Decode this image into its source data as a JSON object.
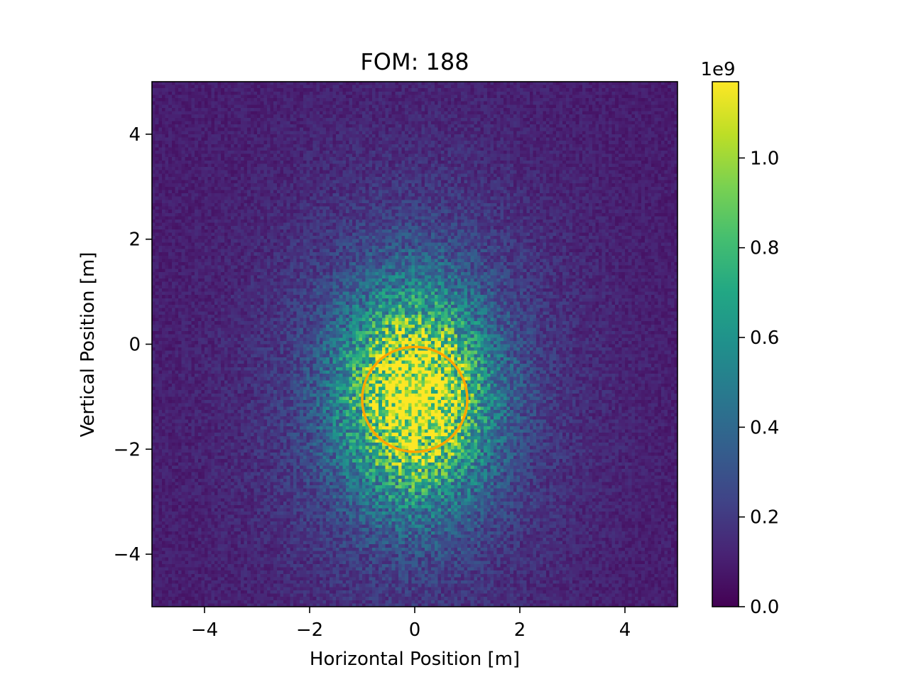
{
  "chart_data": {
    "type": "heatmap",
    "title": "FOM: 188",
    "xlabel": "Horizontal Position [m]",
    "ylabel": "Vertical Position [m]",
    "xlim": [
      -5,
      5
    ],
    "ylim": [
      -5,
      5
    ],
    "x_ticks": [
      -4,
      -2,
      0,
      2,
      4
    ],
    "y_ticks": [
      -4,
      -2,
      0,
      2,
      4
    ],
    "x_tick_labels": [
      "−4",
      "−2",
      "0",
      "2",
      "4"
    ],
    "y_tick_labels": [
      "−4",
      "−2",
      "0",
      "2",
      "4"
    ],
    "grid": false,
    "colormap": "viridis",
    "colorbar": {
      "scale_label": "1e9",
      "min": 0.0,
      "max": 1.17,
      "ticks": [
        0.0,
        0.2,
        0.4,
        0.6,
        0.8,
        1.0
      ],
      "tick_labels": [
        "0.0",
        "0.2",
        "0.4",
        "0.6",
        "0.8",
        "1.0"
      ]
    },
    "distribution": {
      "center_x": 0.0,
      "center_y": -1.0,
      "sigma_x": 0.9,
      "sigma_y": 1.3,
      "peak": 0.85,
      "background": 0.08
    },
    "circle": {
      "center_x": 0.0,
      "center_y": -1.05,
      "radius": 1.0,
      "color": "#ffa500"
    }
  }
}
